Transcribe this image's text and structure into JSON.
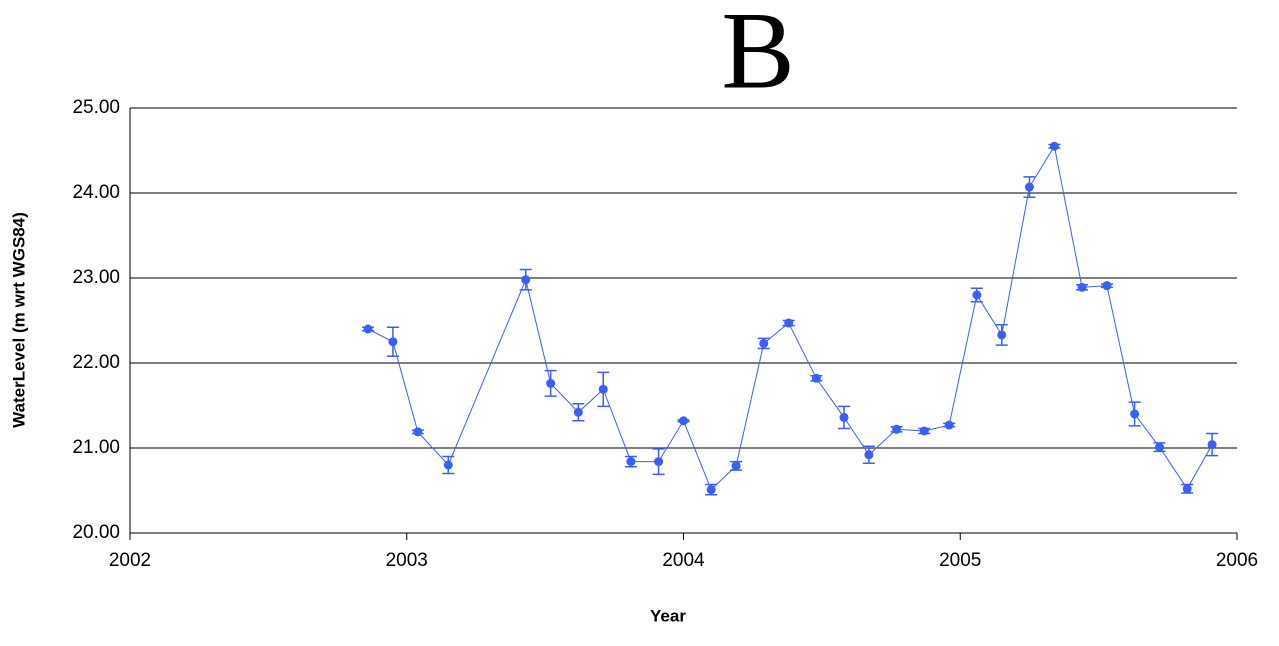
{
  "chart_data": {
    "type": "line",
    "title": "B",
    "x_label": "Year",
    "y_label": "WaterLevel (m wrt WGS84)",
    "xlim": [
      2002,
      2006
    ],
    "xticks": [
      2002,
      2003,
      2004,
      2005,
      2006
    ],
    "ylim": [
      20,
      25
    ],
    "yticks": [
      {
        "value": 20,
        "label": "20.00"
      },
      {
        "value": 21,
        "label": "21.00"
      },
      {
        "value": 22,
        "label": "22.00"
      },
      {
        "value": 23,
        "label": "23.00"
      },
      {
        "value": 24,
        "label": "24.00"
      },
      {
        "value": 25,
        "label": "25.00"
      }
    ],
    "grid": true,
    "series": [
      {
        "color": "#3b5ff5",
        "x": [
          2002.86,
          2002.95,
          2003.04,
          2003.15,
          2003.43,
          2003.52,
          2003.62,
          2003.71,
          2003.81,
          2003.91,
          2004.0,
          2004.1,
          2004.19,
          2004.29,
          2004.38,
          2004.48,
          2004.58,
          2004.67,
          2004.77,
          2004.87,
          2004.96,
          2005.06,
          2005.15,
          2005.25,
          2005.34,
          2005.44,
          2005.53,
          2005.63,
          2005.72,
          2005.82,
          2005.91
        ],
        "values": [
          22.4,
          22.25,
          21.19,
          20.8,
          22.98,
          21.76,
          21.42,
          21.69,
          20.84,
          20.84,
          21.32,
          20.51,
          20.79,
          22.23,
          22.47,
          21.82,
          21.36,
          20.92,
          21.22,
          21.2,
          21.27,
          22.8,
          22.33,
          24.07,
          24.55,
          22.89,
          22.91,
          21.4,
          21.01,
          20.52,
          21.04
        ],
        "errors": [
          0.02,
          0.17,
          0.02,
          0.1,
          0.12,
          0.15,
          0.1,
          0.2,
          0.06,
          0.15,
          0.01,
          0.06,
          0.05,
          0.06,
          0.03,
          0.03,
          0.13,
          0.1,
          0.03,
          0.03,
          0.02,
          0.08,
          0.12,
          0.12,
          0.02,
          0.03,
          0.02,
          0.14,
          0.05,
          0.05,
          0.13
        ]
      }
    ]
  }
}
